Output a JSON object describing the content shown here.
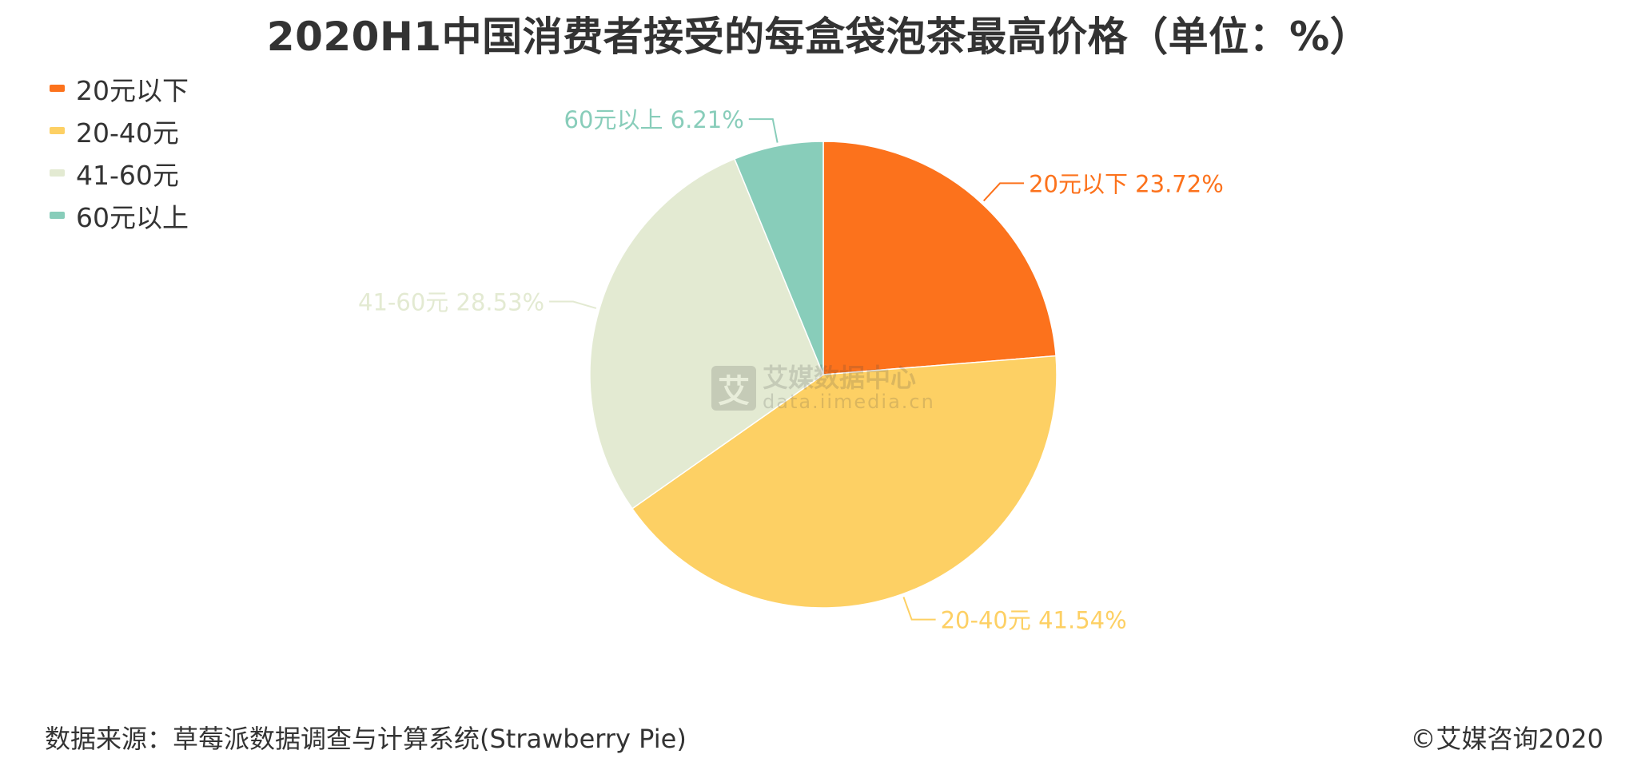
{
  "title": "2020H1中国消费者接受的每盒袋泡茶最高价格（单位：%）",
  "source_note": "数据来源：草莓派数据调查与计算系统(Strawberry Pie)",
  "copyright": "©艾媒咨询2020",
  "watermark": {
    "logo_char": "艾",
    "name": "艾媒数据中心",
    "url": "data.iimedia.cn"
  },
  "chart_data": {
    "type": "pie",
    "title": "2020H1中国消费者接受的每盒袋泡茶最高价格（单位：%）",
    "unit": "%",
    "start_angle_deg": 0,
    "direction": "clockwise",
    "legend_position": "top-left",
    "slices": [
      {
        "label": "20元以下",
        "value": 23.72,
        "display": "23.72%",
        "color": "#FC721C"
      },
      {
        "label": "20-40元",
        "value": 41.54,
        "display": "41.54%",
        "color": "#FDD064"
      },
      {
        "label": "41-60元",
        "value": 28.53,
        "display": "28.53%",
        "color": "#E3EAD2"
      },
      {
        "label": "60元以上",
        "value": 6.21,
        "display": "6.21%",
        "color": "#88CDBA"
      }
    ]
  }
}
